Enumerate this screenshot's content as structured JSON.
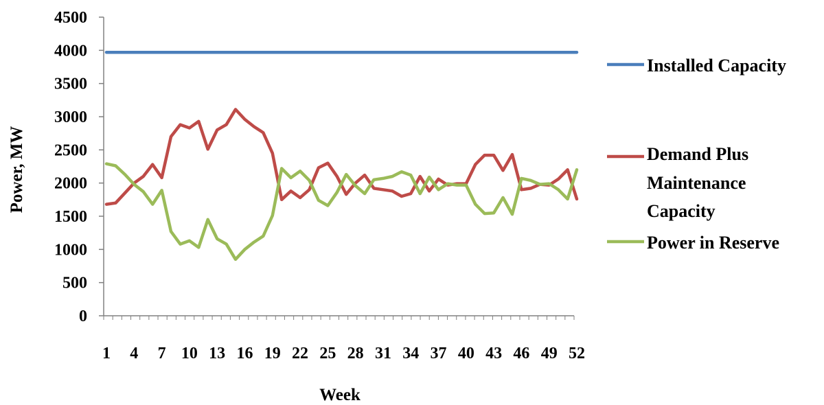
{
  "chart_data": {
    "type": "line",
    "xlabel": "Week",
    "ylabel": "Power, MW",
    "ylim": [
      0,
      4500
    ],
    "yticks": [
      0,
      500,
      1000,
      1500,
      2000,
      2500,
      3000,
      3500,
      4000,
      4500
    ],
    "xticks": [
      1,
      4,
      7,
      10,
      13,
      16,
      19,
      22,
      25,
      28,
      31,
      34,
      37,
      40,
      43,
      46,
      49,
      52
    ],
    "x": [
      1,
      2,
      3,
      4,
      5,
      6,
      7,
      8,
      9,
      10,
      11,
      12,
      13,
      14,
      15,
      16,
      17,
      18,
      19,
      20,
      21,
      22,
      23,
      24,
      25,
      26,
      27,
      28,
      29,
      30,
      31,
      32,
      33,
      34,
      35,
      36,
      37,
      38,
      39,
      40,
      41,
      42,
      43,
      44,
      45,
      46,
      47,
      48,
      49,
      50,
      51,
      52
    ],
    "grid": false,
    "legend_position": "right",
    "series": [
      {
        "name": "Installed Capacity",
        "color": "#4a7ebb",
        "values": [
          3970,
          3970,
          3970,
          3970,
          3970,
          3970,
          3970,
          3970,
          3970,
          3970,
          3970,
          3970,
          3970,
          3970,
          3970,
          3970,
          3970,
          3970,
          3970,
          3970,
          3970,
          3970,
          3970,
          3970,
          3970,
          3970,
          3970,
          3970,
          3970,
          3970,
          3970,
          3970,
          3970,
          3970,
          3970,
          3970,
          3970,
          3970,
          3970,
          3970,
          3970,
          3970,
          3970,
          3970,
          3970,
          3970,
          3970,
          3970,
          3970,
          3970,
          3970,
          3970
        ]
      },
      {
        "name": "Demand Plus Maintenance Capacity",
        "legend_lines": [
          "Demand Plus",
          "Maintenance",
          "Capacity"
        ],
        "color": "#be4b48",
        "values": [
          1680,
          1700,
          1850,
          2000,
          2100,
          2280,
          2080,
          2700,
          2880,
          2830,
          2930,
          2510,
          2800,
          2880,
          3110,
          2960,
          2850,
          2760,
          2450,
          1750,
          1880,
          1780,
          1900,
          2230,
          2300,
          2100,
          1830,
          2000,
          2120,
          1920,
          1900,
          1880,
          1800,
          1840,
          2100,
          1880,
          2060,
          1970,
          1990,
          1990,
          2280,
          2420,
          2420,
          2190,
          2430,
          1900,
          1920,
          1980,
          1970,
          2060,
          2200,
          1760
        ]
      },
      {
        "name": "Power in Reserve",
        "color": "#9bbb59",
        "values": [
          2290,
          2260,
          2130,
          1980,
          1870,
          1680,
          1890,
          1270,
          1080,
          1130,
          1030,
          1450,
          1160,
          1080,
          850,
          1000,
          1110,
          1200,
          1510,
          2220,
          2080,
          2180,
          2040,
          1740,
          1660,
          1860,
          2130,
          1960,
          1840,
          2050,
          2070,
          2100,
          2170,
          2120,
          1840,
          2090,
          1900,
          1990,
          1970,
          1970,
          1680,
          1540,
          1550,
          1780,
          1530,
          2070,
          2040,
          1980,
          1990,
          1900,
          1760,
          2200
        ]
      }
    ]
  }
}
